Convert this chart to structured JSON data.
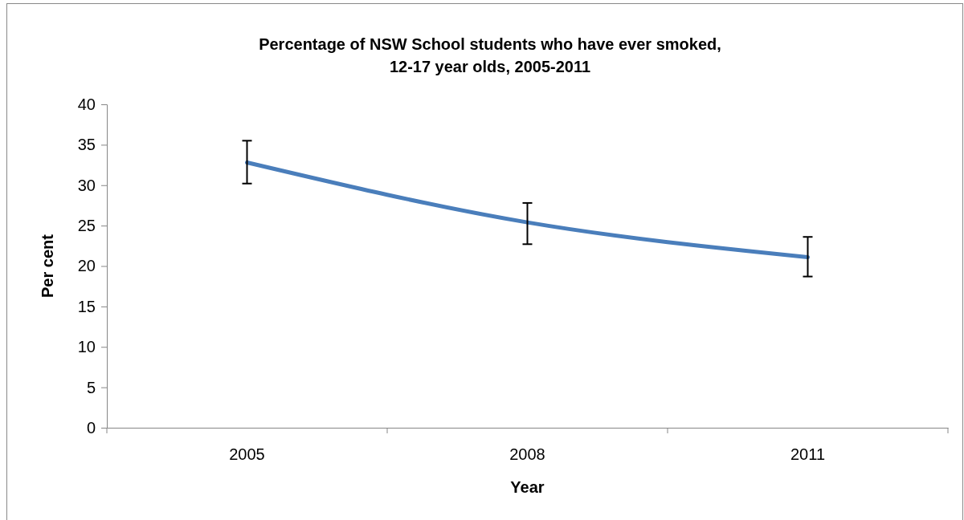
{
  "chart_data": {
    "type": "line",
    "title": "Percentage of NSW School students who have ever smoked,\n12-17 year olds, 2005-2011",
    "xlabel": "Year",
    "ylabel": "Per cent",
    "categories": [
      "2005",
      "2008",
      "2011"
    ],
    "series": [
      {
        "color": "#4a7ebb",
        "values": [
          32.8,
          25.4,
          21.1
        ],
        "errors": [
          [
            30.2,
            35.5
          ],
          [
            22.7,
            27.8
          ],
          [
            18.7,
            23.6
          ]
        ]
      }
    ],
    "ylim": [
      0,
      40
    ],
    "yticks": [
      0,
      5,
      10,
      15,
      20,
      25,
      30,
      35,
      40
    ],
    "grid": false,
    "marker": "none",
    "line_style": "solid"
  }
}
